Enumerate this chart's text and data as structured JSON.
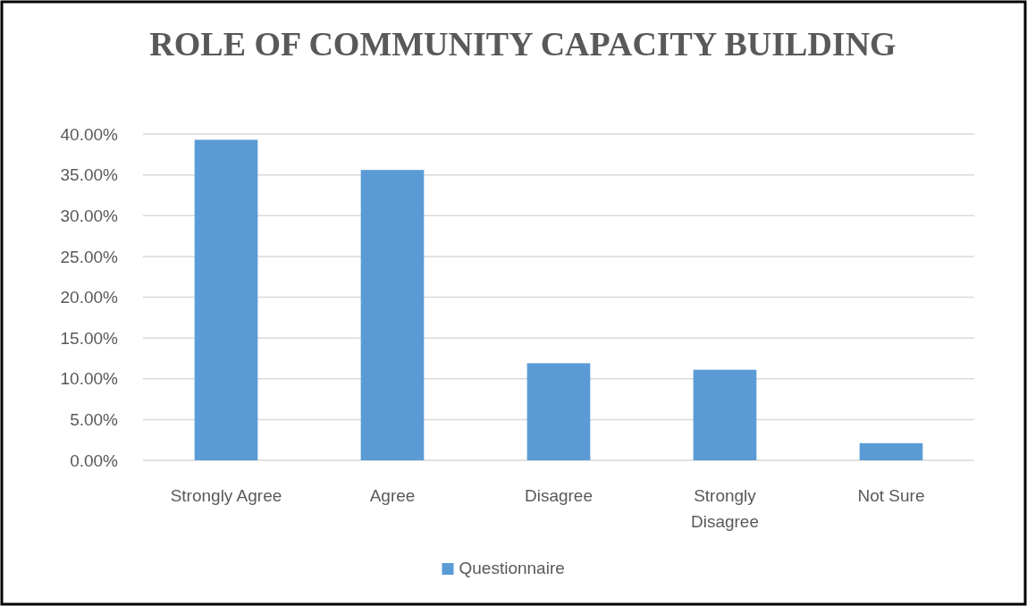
{
  "chart_data": {
    "type": "bar",
    "title": "ROLE OF COMMUNITY CAPACITY BUILDING",
    "categories": [
      "Strongly Agree",
      "Agree",
      "Disagree",
      "Strongly Disagree",
      "Not Sure"
    ],
    "series": [
      {
        "name": "Questionnaire",
        "color": "#5b9bd5",
        "values": [
          39.3,
          35.6,
          11.9,
          11.1,
          2.1
        ]
      }
    ],
    "ylim": [
      0,
      40
    ],
    "yticks": [
      {
        "value": 0,
        "label": "0.00%"
      },
      {
        "value": 5,
        "label": "5.00%"
      },
      {
        "value": 10,
        "label": "10.00%"
      },
      {
        "value": 15,
        "label": "15.00%"
      },
      {
        "value": 20,
        "label": "20.00%"
      },
      {
        "value": 25,
        "label": "25.00%"
      },
      {
        "value": 30,
        "label": "30.00%"
      },
      {
        "value": 35,
        "label": "35.00%"
      },
      {
        "value": 40,
        "label": "40.00%"
      }
    ],
    "grid": "y",
    "legend": "bottom"
  }
}
